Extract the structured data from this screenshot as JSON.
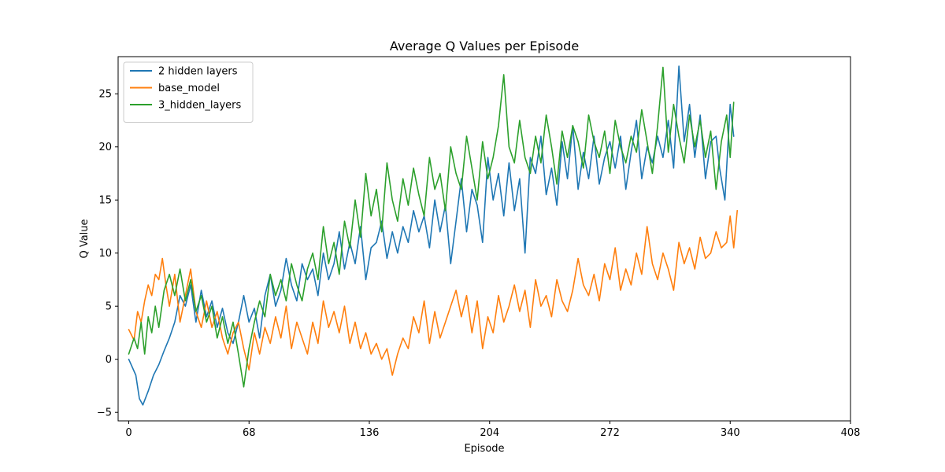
{
  "chart_data": {
    "type": "line",
    "title": "Average Q Values per Episode",
    "xlabel": "Episode",
    "ylabel": "Q Value",
    "xlim": [
      -6,
      408
    ],
    "ylim": [
      -5.8,
      28.5
    ],
    "xticks": [
      0,
      68,
      136,
      204,
      272,
      340,
      408
    ],
    "yticks": [
      -5,
      0,
      5,
      10,
      15,
      20,
      25
    ],
    "ytick_labels": [
      "−5",
      "0",
      "5",
      "10",
      "15",
      "20",
      "25"
    ],
    "grid": false,
    "legend_position": "top-left",
    "series": [
      {
        "name": "2 hidden layers",
        "color": "#1f77b4",
        "x": [
          0,
          4,
          6,
          8,
          11,
          14,
          17,
          20,
          23,
          26,
          29,
          32,
          35,
          38,
          41,
          44,
          47,
          50,
          53,
          56,
          59,
          62,
          65,
          68,
          71,
          74,
          77,
          80,
          83,
          86,
          89,
          92,
          95,
          98,
          101,
          104,
          107,
          110,
          113,
          116,
          119,
          122,
          125,
          128,
          131,
          134,
          137,
          140,
          143,
          146,
          149,
          152,
          155,
          158,
          161,
          164,
          167,
          170,
          173,
          176,
          179,
          182,
          185,
          188,
          191,
          194,
          197,
          200,
          203,
          206,
          209,
          212,
          215,
          218,
          221,
          224,
          227,
          230,
          233,
          236,
          239,
          242,
          245,
          248,
          251,
          254,
          257,
          260,
          263,
          266,
          269,
          272,
          275,
          278,
          281,
          284,
          287,
          290,
          293,
          296,
          299,
          302,
          305,
          308,
          311,
          314,
          317,
          320,
          323,
          326,
          329,
          332,
          334,
          337,
          340,
          342
        ],
        "y": [
          0.0,
          -1.5,
          -3.7,
          -4.3,
          -3.0,
          -1.5,
          -0.5,
          0.8,
          2.0,
          3.5,
          6.0,
          5.0,
          7.0,
          3.5,
          6.5,
          4.0,
          5.5,
          3.0,
          4.8,
          2.5,
          1.5,
          3.5,
          6.0,
          3.5,
          4.8,
          2.0,
          6.0,
          8.0,
          5.0,
          6.5,
          9.5,
          7.0,
          5.5,
          9.0,
          7.5,
          8.5,
          6.0,
          10.0,
          7.5,
          9.0,
          12.0,
          8.5,
          11.0,
          9.0,
          12.5,
          7.5,
          10.5,
          11.0,
          13.0,
          9.5,
          12.0,
          10.0,
          12.5,
          11.0,
          14.0,
          12.0,
          13.5,
          10.5,
          15.0,
          12.0,
          14.5,
          9.0,
          13.0,
          17.0,
          12.0,
          16.0,
          14.5,
          11.0,
          19.0,
          15.0,
          17.5,
          13.5,
          18.5,
          14.0,
          17.0,
          10.0,
          19.0,
          17.5,
          21.0,
          15.5,
          18.0,
          14.5,
          20.5,
          17.0,
          22.0,
          16.0,
          19.5,
          17.0,
          21.0,
          16.5,
          19.0,
          20.5,
          18.0,
          21.0,
          16.0,
          19.5,
          22.5,
          17.0,
          20.0,
          18.5,
          21.0,
          19.0,
          22.5,
          18.0,
          27.6,
          20.5,
          24.0,
          19.0,
          23.0,
          17.0,
          20.5,
          21.0,
          18.0,
          15.0,
          24.0,
          21.0
        ]
      },
      {
        "name": "base_model",
        "color": "#ff7f0e",
        "x": [
          0,
          3,
          5,
          7,
          9,
          11,
          13,
          15,
          17,
          19,
          21,
          23,
          26,
          29,
          32,
          35,
          38,
          41,
          44,
          47,
          50,
          53,
          56,
          59,
          62,
          65,
          68,
          71,
          74,
          77,
          80,
          83,
          86,
          89,
          92,
          95,
          98,
          101,
          104,
          107,
          110,
          113,
          116,
          119,
          122,
          125,
          128,
          131,
          134,
          137,
          140,
          143,
          146,
          149,
          152,
          155,
          158,
          161,
          164,
          167,
          170,
          173,
          176,
          179,
          182,
          185,
          188,
          191,
          194,
          197,
          200,
          203,
          206,
          209,
          212,
          215,
          218,
          221,
          224,
          227,
          230,
          233,
          236,
          239,
          242,
          245,
          248,
          251,
          254,
          257,
          260,
          263,
          266,
          269,
          272,
          275,
          278,
          281,
          284,
          287,
          290,
          293,
          296,
          299,
          302,
          305,
          308,
          311,
          314,
          317,
          320,
          323,
          326,
          329,
          332,
          335,
          338,
          340,
          342,
          344
        ],
        "y": [
          2.8,
          1.8,
          4.5,
          3.5,
          5.5,
          7.0,
          6.0,
          8.0,
          7.5,
          9.5,
          7.0,
          5.0,
          8.0,
          3.5,
          6.0,
          8.5,
          4.5,
          3.0,
          5.5,
          3.0,
          4.5,
          2.0,
          0.5,
          2.5,
          3.5,
          1.0,
          -1.0,
          2.5,
          0.5,
          3.0,
          1.5,
          4.0,
          2.0,
          5.0,
          1.0,
          3.5,
          2.0,
          0.5,
          3.5,
          1.5,
          5.5,
          3.0,
          4.5,
          2.5,
          5.0,
          1.5,
          3.5,
          1.0,
          2.5,
          0.5,
          1.5,
          0.0,
          1.0,
          -1.5,
          0.5,
          2.0,
          1.0,
          4.0,
          2.5,
          5.5,
          1.5,
          4.5,
          2.0,
          3.5,
          5.0,
          6.5,
          4.0,
          6.0,
          2.5,
          5.5,
          1.0,
          4.0,
          2.5,
          6.0,
          3.5,
          5.0,
          7.0,
          4.5,
          6.5,
          3.0,
          7.5,
          5.0,
          6.0,
          4.0,
          7.5,
          5.5,
          4.5,
          6.5,
          9.5,
          7.0,
          6.0,
          8.0,
          5.5,
          9.0,
          7.5,
          10.5,
          6.5,
          8.5,
          7.0,
          10.0,
          8.0,
          12.5,
          9.0,
          7.5,
          10.0,
          8.5,
          6.5,
          11.0,
          9.0,
          10.5,
          8.5,
          11.5,
          9.5,
          10.0,
          12.0,
          10.5,
          11.0,
          13.5,
          10.5,
          14.0
        ]
      },
      {
        "name": "3_hidden_layers",
        "color": "#2ca02c",
        "x": [
          0,
          3,
          5,
          7,
          9,
          11,
          13,
          15,
          17,
          20,
          23,
          26,
          29,
          32,
          35,
          38,
          41,
          44,
          47,
          50,
          53,
          56,
          59,
          62,
          65,
          68,
          71,
          74,
          77,
          80,
          83,
          86,
          89,
          92,
          95,
          98,
          101,
          104,
          107,
          110,
          113,
          116,
          119,
          122,
          125,
          128,
          131,
          134,
          137,
          140,
          143,
          146,
          149,
          152,
          155,
          158,
          161,
          164,
          167,
          170,
          173,
          176,
          179,
          182,
          185,
          188,
          191,
          194,
          197,
          200,
          203,
          206,
          209,
          212,
          215,
          218,
          221,
          224,
          227,
          230,
          233,
          236,
          239,
          242,
          245,
          248,
          251,
          254,
          257,
          260,
          263,
          266,
          269,
          272,
          275,
          278,
          281,
          284,
          287,
          290,
          293,
          296,
          299,
          302,
          305,
          308,
          311,
          314,
          317,
          320,
          323,
          326,
          329,
          332,
          335,
          338,
          340,
          342
        ],
        "y": [
          0.5,
          2.0,
          1.0,
          3.5,
          0.5,
          4.0,
          2.5,
          5.0,
          3.0,
          6.5,
          8.0,
          6.0,
          8.5,
          5.5,
          7.5,
          4.5,
          6.0,
          3.5,
          5.0,
          2.0,
          4.0,
          1.5,
          3.5,
          0.5,
          -2.6,
          1.0,
          3.5,
          5.5,
          4.0,
          8.0,
          6.0,
          7.5,
          5.5,
          9.0,
          7.0,
          5.5,
          8.5,
          10.0,
          7.5,
          12.5,
          9.0,
          11.0,
          8.0,
          13.0,
          10.5,
          15.0,
          11.5,
          17.5,
          13.5,
          16.0,
          12.0,
          18.5,
          15.0,
          13.0,
          17.0,
          14.5,
          18.0,
          15.5,
          13.5,
          19.0,
          16.0,
          17.5,
          14.0,
          20.0,
          17.5,
          16.0,
          21.0,
          18.0,
          15.0,
          20.5,
          17.0,
          19.0,
          22.0,
          26.8,
          20.0,
          18.5,
          22.5,
          19.0,
          17.5,
          21.0,
          18.5,
          23.0,
          20.0,
          16.5,
          21.5,
          19.0,
          22.0,
          20.5,
          18.0,
          23.0,
          20.5,
          19.0,
          21.5,
          17.5,
          22.5,
          20.0,
          18.5,
          21.0,
          19.5,
          23.5,
          20.5,
          17.5,
          22.0,
          27.5,
          19.5,
          24.0,
          21.0,
          18.5,
          23.0,
          20.0,
          22.5,
          19.0,
          21.5,
          16.0,
          20.5,
          23.0,
          19.0,
          24.2
        ]
      }
    ]
  }
}
